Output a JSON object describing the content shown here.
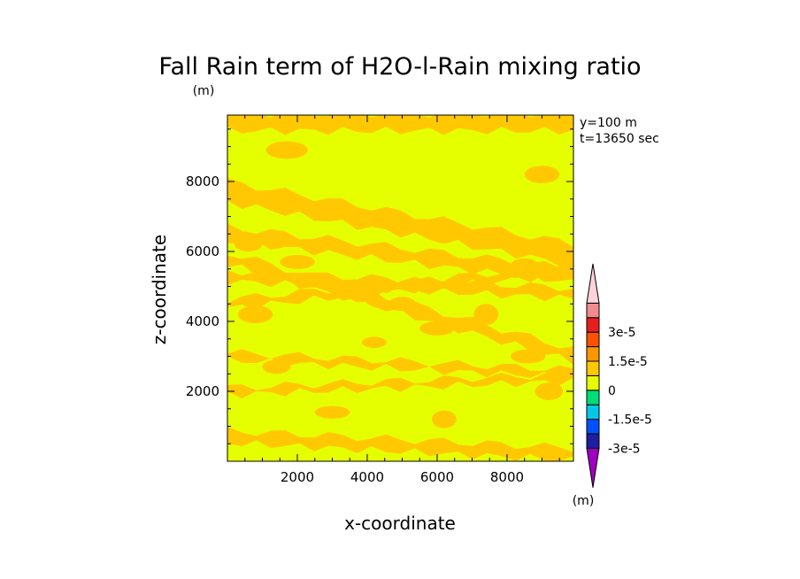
{
  "chart_data": {
    "type": "heatmap",
    "title": "Fall Rain term of H2O-l-Rain mixing ratio",
    "unit_top": "(m)",
    "xlabel": "x-coordinate",
    "ylabel": "z-coordinate",
    "annotation_y": "y=100 m",
    "annotation_t": "t=13650 sec",
    "xlim": [
      0,
      9900
    ],
    "ylim": [
      0,
      9900
    ],
    "x_ticks": [
      {
        "value": 2000,
        "label": "2000"
      },
      {
        "value": 4000,
        "label": "4000"
      },
      {
        "value": 6000,
        "label": "6000"
      },
      {
        "value": 8000,
        "label": "8000"
      }
    ],
    "y_ticks": [
      {
        "value": 2000,
        "label": "2000"
      },
      {
        "value": 4000,
        "label": "4000"
      },
      {
        "value": 6000,
        "label": "6000"
      },
      {
        "value": 8000,
        "label": "8000"
      }
    ],
    "colorbar": {
      "unit": "(m)",
      "levels": [
        {
          "color": "#a000c0"
        },
        {
          "color": "#1e1ea0"
        },
        {
          "color": "#0050ff"
        },
        {
          "color": "#00c8e6"
        },
        {
          "color": "#00dc78"
        },
        {
          "color": "#e6ff00"
        },
        {
          "color": "#ffc800"
        },
        {
          "color": "#ff9600"
        },
        {
          "color": "#ff5000"
        },
        {
          "color": "#e61e1e"
        },
        {
          "color": "#f08c8c"
        },
        {
          "color": "#ffd2dc"
        }
      ],
      "labels": [
        {
          "boundary": 1,
          "text": "-3e-5"
        },
        {
          "boundary": 3,
          "text": "-1.5e-5"
        },
        {
          "boundary": 5,
          "text": "0"
        },
        {
          "boundary": 7,
          "text": "1.5e-5"
        },
        {
          "boundary": 9,
          "text": "3e-5"
        }
      ]
    },
    "field": {
      "background_color": "#e6ff00",
      "band_color": "#ffc800",
      "bands": [
        {
          "z_start": 9700,
          "slope": 0.0,
          "width": 500
        },
        {
          "z_start": 7700,
          "slope": -0.18,
          "width": 600
        },
        {
          "z_start": 6500,
          "slope": -0.12,
          "width": 400
        },
        {
          "z_start": 5300,
          "slope": -0.05,
          "width": 300
        },
        {
          "z_start": 5800,
          "slope": -0.28,
          "width": 350
        },
        {
          "z_start": 4500,
          "slope": 0.1,
          "width": 250
        },
        {
          "z_start": 3000,
          "slope": -0.05,
          "width": 220
        },
        {
          "z_start": 2000,
          "slope": 0.04,
          "width": 200
        },
        {
          "z_start": 700,
          "slope": -0.05,
          "width": 350
        }
      ],
      "patches": [
        {
          "x": 800,
          "z": 4200,
          "rx": 500,
          "rz": 250
        },
        {
          "x": 1400,
          "z": 2700,
          "rx": 400,
          "rz": 200
        },
        {
          "x": 2000,
          "z": 5700,
          "rx": 500,
          "rz": 200
        },
        {
          "x": 3800,
          "z": 4800,
          "rx": 350,
          "rz": 250
        },
        {
          "x": 5000,
          "z": 4500,
          "rx": 400,
          "rz": 200
        },
        {
          "x": 6000,
          "z": 3800,
          "rx": 500,
          "rz": 200
        },
        {
          "x": 7400,
          "z": 4200,
          "rx": 350,
          "rz": 300
        },
        {
          "x": 8600,
          "z": 3000,
          "rx": 500,
          "rz": 200
        },
        {
          "x": 9200,
          "z": 2000,
          "rx": 400,
          "rz": 250
        },
        {
          "x": 3000,
          "z": 1400,
          "rx": 500,
          "rz": 180
        },
        {
          "x": 6200,
          "z": 1200,
          "rx": 350,
          "rz": 250
        },
        {
          "x": 4200,
          "z": 3400,
          "rx": 350,
          "rz": 160
        },
        {
          "x": 8500,
          "z": 5600,
          "rx": 400,
          "rz": 200
        },
        {
          "x": 9000,
          "z": 8200,
          "rx": 500,
          "rz": 250
        },
        {
          "x": 1700,
          "z": 8900,
          "rx": 600,
          "rz": 250
        },
        {
          "x": 600,
          "z": 6200,
          "rx": 400,
          "rz": 200
        }
      ]
    }
  }
}
